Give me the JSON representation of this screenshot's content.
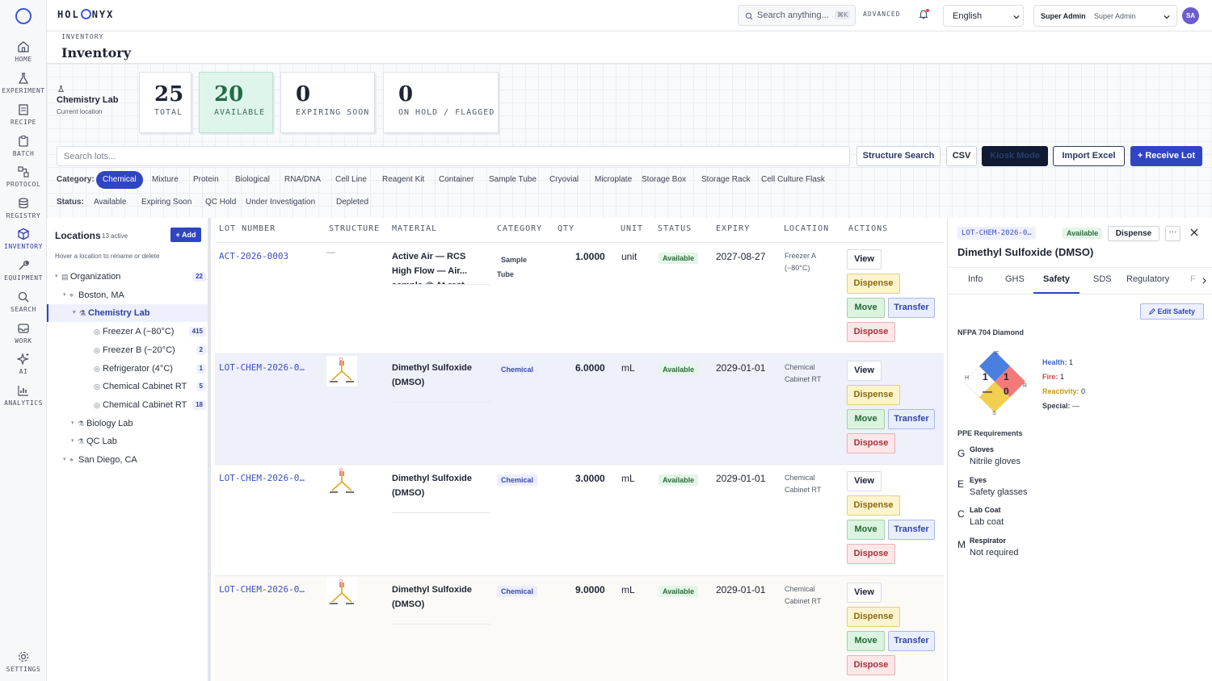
{
  "app": {
    "brand_left": "HOL",
    "brand_right": "NYX"
  },
  "nav": [
    {
      "key": "home",
      "label": "HOME",
      "icon": "home-icon"
    },
    {
      "key": "experiment",
      "label": "EXPERIMENT",
      "icon": "flask-icon"
    },
    {
      "key": "recipe",
      "label": "RECIPE",
      "icon": "recipe-icon"
    },
    {
      "key": "batch",
      "label": "BATCH",
      "icon": "clipboard-icon"
    },
    {
      "key": "protocol",
      "label": "PROTOCOL",
      "icon": "protocol-icon"
    },
    {
      "key": "registry",
      "label": "REGISTRY",
      "icon": "database-icon"
    },
    {
      "key": "inventory",
      "label": "INVENTORY",
      "icon": "cube-icon",
      "active": true
    },
    {
      "key": "equipment",
      "label": "EQUIPMENT",
      "icon": "wrench-icon"
    },
    {
      "key": "search",
      "label": "SEARCH",
      "icon": "search-icon"
    },
    {
      "key": "work",
      "label": "WORK",
      "icon": "inbox-icon"
    },
    {
      "key": "ai",
      "label": "AI",
      "icon": "sparkle-icon"
    },
    {
      "key": "analytics",
      "label": "ANALYTICS",
      "icon": "bar-chart-icon"
    }
  ],
  "settings_label": "SETTINGS",
  "topbar": {
    "search_placeholder": "Search anything...",
    "search_shortcut": "⌘K",
    "advanced_label": "ADVANCED",
    "language": "English",
    "user_role": "Super Admin",
    "user_name": "Super Admin",
    "avatar_initials": "SA"
  },
  "page": {
    "breadcrumb": "INVENTORY",
    "title": "Inventory"
  },
  "location_card": {
    "name": "Chemistry Lab",
    "sub": "Current location"
  },
  "stats": [
    {
      "value": "25",
      "label": "TOTAL",
      "highlight": false
    },
    {
      "value": "20",
      "label": "AVAILABLE",
      "highlight": true
    },
    {
      "value": "0",
      "label": "EXPIRING SOON",
      "highlight": false
    },
    {
      "value": "0",
      "label": "ON HOLD / FLAGGED",
      "highlight": false
    }
  ],
  "toolbar": {
    "search_placeholder": "Search lots...",
    "structure_search": "Structure Search",
    "csv": "CSV",
    "kiosk": "Kiosk Mode",
    "import": "Import Excel",
    "receive": "+ Receive Lot"
  },
  "filters": {
    "category_label": "Category:",
    "categories": [
      "Chemical",
      "Mixture",
      "Protein",
      "Biological",
      "RNA/DNA",
      "Cell Line",
      "Reagent Kit",
      "Container",
      "Sample Tube",
      "Cryovial",
      "Microplate",
      "Storage Box",
      "Storage Rack",
      "Cell Culture Flask"
    ],
    "selected_category": "Chemical",
    "status_label": "Status:",
    "statuses": [
      "Available",
      "Expiring Soon",
      "QC Hold",
      "Under Investigation",
      "Depleted"
    ]
  },
  "locations": {
    "title": "Locations",
    "active_count": "13 active",
    "add_label": "+ Add",
    "hint": "Hover a location to rename or delete",
    "tree": [
      {
        "label": "Organization",
        "count": "22",
        "depth": 0,
        "icon": "building-icon"
      },
      {
        "label": "Boston, MA",
        "count": "",
        "depth": 1,
        "icon": "pin-icon"
      },
      {
        "label": "Chemistry Lab",
        "count": "",
        "depth": 2,
        "icon": "flask-icon",
        "selected": true
      },
      {
        "label": "Freezer A (−80°C)",
        "count": "415",
        "depth": 3,
        "icon": "box-icon"
      },
      {
        "label": "Freezer B (−20°C)",
        "count": "2",
        "depth": 3,
        "icon": "box-icon"
      },
      {
        "label": "Refrigerator (4°C)",
        "count": "1",
        "depth": 3,
        "icon": "box-icon"
      },
      {
        "label": "Chemical Cabinet RT",
        "count": "5",
        "depth": 3,
        "icon": "box-icon"
      },
      {
        "label": "Chemical Cabinet RT",
        "count": "18",
        "depth": 3,
        "icon": "box-icon"
      },
      {
        "label": "Biology Lab",
        "count": "",
        "depth": 2,
        "icon": "flask-icon"
      },
      {
        "label": "QC Lab",
        "count": "",
        "depth": 2,
        "icon": "flask-icon"
      },
      {
        "label": "San Diego, CA",
        "count": "",
        "depth": 1,
        "icon": "pin-icon"
      }
    ]
  },
  "table": {
    "columns": [
      "LOT NUMBER",
      "STRUCTURE",
      "MATERIAL",
      "CATEGORY",
      "QTY",
      "UNIT",
      "STATUS",
      "EXPIRY",
      "LOCATION",
      "ACTIONS"
    ],
    "actions": {
      "view": "View",
      "dispense": "Dispense",
      "move": "Move",
      "transfer": "Transfer",
      "dispose": "Dispose"
    },
    "rows": [
      {
        "lot": "ACT-2026-0003",
        "structure": "—",
        "material_l1": "Active Air — RCS",
        "material_l2": "High Flow — Air...",
        "material_l3": "sample @ At-rest",
        "category_l1": "Sample",
        "category_l2": "Tube",
        "qty": "1.0000",
        "unit": "unit",
        "status": "Available",
        "expiry": "2027-08-27",
        "location_l1": "Freezer A",
        "location_l2": "(−80°C)"
      },
      {
        "lot": "LOT-CHEM-2026-0…",
        "structure": "molecule",
        "material_l1": "Dimethyl Sulfoxide",
        "material_l2": "(DMSO)",
        "material_l3": "",
        "category_l1": "Chemical",
        "category_l2": "",
        "qty": "6.0000",
        "unit": "mL",
        "status": "Available",
        "expiry": "2029-01-01",
        "location_l1": "Chemical",
        "location_l2": "Cabinet RT"
      },
      {
        "lot": "LOT-CHEM-2026-0…",
        "structure": "molecule",
        "material_l1": "Dimethyl Sulfoxide",
        "material_l2": "(DMSO)",
        "material_l3": "",
        "category_l1": "Chemical",
        "category_l2": "",
        "qty": "3.0000",
        "unit": "mL",
        "status": "Available",
        "expiry": "2029-01-01",
        "location_l1": "Chemical",
        "location_l2": "Cabinet RT"
      },
      {
        "lot": "LOT-CHEM-2026-0…",
        "structure": "molecule",
        "material_l1": "Dimethyl Sulfoxide",
        "material_l2": "(DMSO)",
        "material_l3": "",
        "category_l1": "Chemical",
        "category_l2": "",
        "qty": "9.0000",
        "unit": "mL",
        "status": "Available",
        "expiry": "2029-01-01",
        "location_l1": "Chemical",
        "location_l2": "Cabinet RT"
      }
    ]
  },
  "detail": {
    "lot": "LOT-CHEM-2026-0…",
    "status": "Available",
    "dispense": "Dispense",
    "title": "Dimethyl Sulfoxide (DMSO)",
    "tabs": [
      "Info",
      "GHS",
      "Safety",
      "SDS",
      "Regulatory",
      "F"
    ],
    "selected_tab": "Safety",
    "edit_safety": "Edit Safety",
    "nfpa_title": "NFPA 704 Diamond",
    "nfpa": {
      "health": "1",
      "fire": "1",
      "reactivity": "0",
      "special": "—",
      "health_label": "Health:",
      "fire_label": "Fire:",
      "reactivity_label": "Reactivity:",
      "special_label": "Special:",
      "side_h": "H",
      "side_f": "F",
      "side_r": "R",
      "side_s": "S",
      "colors": {
        "health": "#4a7fe0",
        "fire": "#f47a7a",
        "reactivity": "#f3cf4f",
        "special": "#ffffff"
      }
    },
    "ppe_title": "PPE Requirements",
    "ppe": [
      {
        "letter": "G",
        "name": "Gloves",
        "value": "Nitrile gloves"
      },
      {
        "letter": "E",
        "name": "Eyes",
        "value": "Safety glasses"
      },
      {
        "letter": "C",
        "name": "Lab Coat",
        "value": "Lab coat"
      },
      {
        "letter": "M",
        "name": "Respirator",
        "value": "Not required"
      }
    ]
  }
}
